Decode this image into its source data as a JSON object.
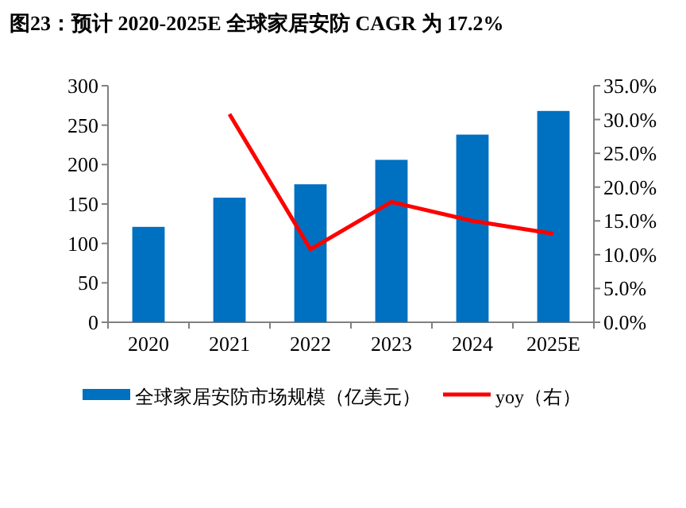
{
  "chart_data": {
    "type": "bar",
    "title": "图23：预计 2020-2025E 全球家居安防 CAGR 为 17.2%",
    "categories": [
      "2020",
      "2021",
      "2022",
      "2023",
      "2024",
      "2025E"
    ],
    "series": [
      {
        "name": "全球家居安防市场规模（亿美元）",
        "color": "#0070c0",
        "values": [
          121,
          158,
          175,
          206,
          238,
          268
        ]
      },
      {
        "name": "yoy（右）",
        "type": "line",
        "axis": "y2",
        "color": "#ff0000",
        "values": [
          null,
          30.8,
          10.8,
          17.8,
          15.0,
          13.1
        ]
      }
    ],
    "ylim": [
      0,
      300
    ],
    "yticks": [
      0,
      50,
      100,
      150,
      200,
      250,
      300
    ],
    "y2lim": [
      0,
      35
    ],
    "y2ticks": [
      {
        "value": 0,
        "label": "0.0%"
      },
      {
        "value": 5,
        "label": "5.0%"
      },
      {
        "value": 10,
        "label": "10.0%"
      },
      {
        "value": 15,
        "label": "15.0%"
      },
      {
        "value": 20,
        "label": "20.0%"
      },
      {
        "value": 25,
        "label": "25.0%"
      },
      {
        "value": 30,
        "label": "30.0%"
      },
      {
        "value": 35,
        "label": "35.0%"
      }
    ],
    "legend": "bottom"
  }
}
